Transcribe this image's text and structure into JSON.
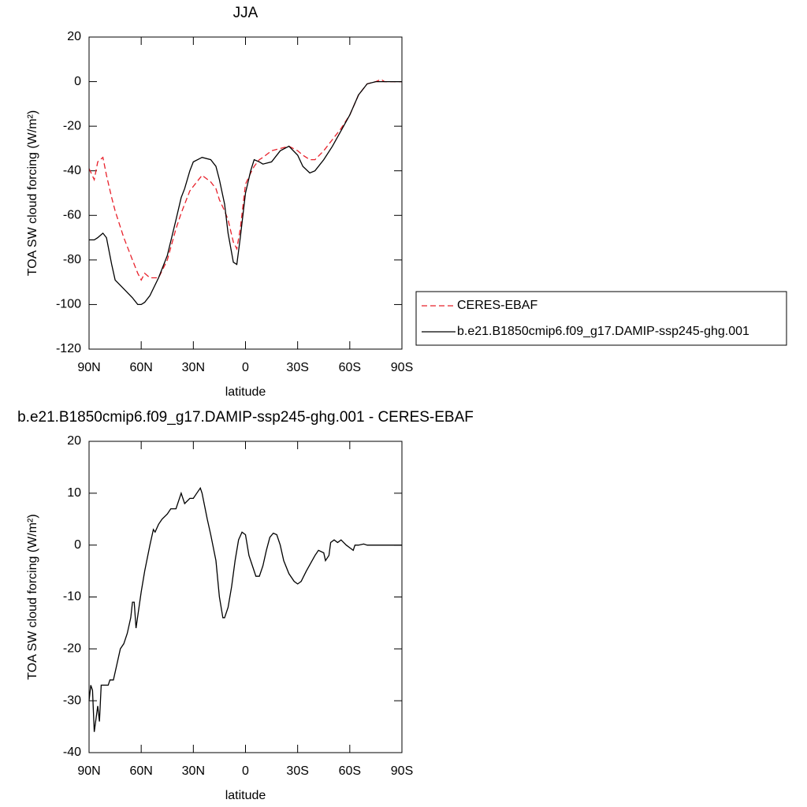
{
  "chart_data": [
    {
      "type": "line",
      "title": "JJA",
      "xlabel": "latitude",
      "ylabel": "TOA SW cloud forcing (W/m²)",
      "x": [
        90,
        87,
        85,
        82,
        80,
        77,
        75,
        70,
        65,
        62,
        60,
        58,
        55,
        50,
        45,
        40,
        37,
        35,
        32,
        30,
        25,
        20,
        17,
        15,
        12,
        10,
        7,
        5,
        3,
        0,
        -3,
        -5,
        -8,
        -10,
        -15,
        -20,
        -25,
        -30,
        -33,
        -37,
        -40,
        -45,
        -50,
        -55,
        -60,
        -65,
        -70,
        -75,
        -78,
        -80,
        -85,
        -90
      ],
      "series": [
        {
          "name": "CERES-EBAF",
          "color": "#e8202a",
          "dashed": true,
          "values": [
            -39,
            -44,
            -36,
            -34,
            -42,
            -52,
            -58,
            -70,
            -80,
            -86,
            -89,
            -86,
            -88,
            -88,
            -80,
            -66,
            -59,
            -55,
            -49,
            -47,
            -42,
            -45,
            -48,
            -53,
            -58,
            -62,
            -72,
            -75,
            -66,
            -46,
            -41,
            -38,
            -35,
            -34,
            -31,
            -30,
            -29,
            -31,
            -33,
            -35,
            -35,
            -31,
            -26,
            -21,
            -15,
            -6,
            -1,
            0,
            1,
            0,
            0,
            0
          ]
        },
        {
          "name": "b.e21.B1850cmip6.f09_g17.DAMIP-ssp245-ghg.001",
          "color": "#000000",
          "dashed": false,
          "values": [
            -71,
            -71,
            -70,
            -68,
            -70,
            -82,
            -89,
            -93,
            -97,
            -100,
            -100,
            -99,
            -96,
            -88,
            -78,
            -62,
            -52,
            -48,
            -40,
            -36,
            -34,
            -35,
            -38,
            -44,
            -55,
            -68,
            -81,
            -82,
            -70,
            -50,
            -40,
            -35,
            -36,
            -37,
            -36,
            -31,
            -29,
            -33,
            -38,
            -41,
            -40,
            -35,
            -29,
            -22,
            -15,
            -6,
            -1,
            0,
            0,
            0,
            0,
            0
          ]
        }
      ],
      "xlim": [
        90,
        -90
      ],
      "xticks": [
        {
          "value": 90,
          "label": "90N"
        },
        {
          "value": 60,
          "label": "60N"
        },
        {
          "value": 30,
          "label": "30N"
        },
        0,
        {
          "value": -30,
          "label": "30S"
        },
        {
          "value": -60,
          "label": "60S"
        },
        {
          "value": -90,
          "label": "90S"
        }
      ],
      "ylim": [
        -120,
        20
      ],
      "yticks": [
        -120,
        -100,
        -80,
        -60,
        -40,
        -20,
        0,
        20
      ],
      "legend": "right"
    },
    {
      "type": "line",
      "title": "b.e21.B1850cmip6.f09_g17.DAMIP-ssp245-ghg.001 - CERES-EBAF",
      "xlabel": "latitude",
      "ylabel": "TOA SW cloud forcing (W/m²)",
      "x": [
        90,
        89,
        88,
        87,
        85,
        84,
        83,
        81,
        79,
        78,
        76,
        74,
        72,
        70,
        68,
        66,
        65,
        64,
        63,
        60,
        58,
        55,
        53,
        52,
        50,
        48,
        45,
        43,
        40,
        37,
        35,
        32,
        30,
        28,
        26,
        25,
        22,
        20,
        17,
        15,
        13,
        12,
        10,
        8,
        6,
        4,
        2,
        0,
        -2,
        -4,
        -6,
        -8,
        -10,
        -12,
        -14,
        -16,
        -18,
        -20,
        -22,
        -25,
        -28,
        -30,
        -32,
        -35,
        -40,
        -42,
        -45,
        -46,
        -48,
        -49,
        -51,
        -53,
        -55,
        -58,
        -60,
        -62,
        -63,
        -65,
        -68,
        -70,
        -80,
        -90
      ],
      "series": [
        {
          "name": null,
          "color": "#000000",
          "dashed": false,
          "values": [
            -30,
            -27,
            -28,
            -36,
            -31,
            -34,
            -27,
            -27,
            -27,
            -26,
            -26,
            -23,
            -20,
            -19,
            -17,
            -14,
            -11,
            -11,
            -16,
            -9,
            -5,
            0,
            3,
            2.5,
            4,
            5,
            6,
            7,
            7,
            10,
            8,
            9,
            9,
            10,
            11,
            10,
            5,
            2,
            -3,
            -10,
            -14,
            -14,
            -12,
            -8,
            -3,
            1,
            2.5,
            2,
            -2,
            -4,
            -6,
            -6,
            -4,
            -1,
            1.5,
            2.3,
            2,
            0,
            -3,
            -5.5,
            -7,
            -7.5,
            -7,
            -5,
            -2,
            -1,
            -1.5,
            -3,
            -2,
            0.5,
            1,
            0.5,
            1,
            0,
            -0.5,
            -1,
            0,
            0,
            0.2,
            0,
            0,
            0
          ]
        }
      ],
      "xlim": [
        90,
        -90
      ],
      "xticks": [
        {
          "value": 90,
          "label": "90N"
        },
        {
          "value": 60,
          "label": "60N"
        },
        {
          "value": 30,
          "label": "30N"
        },
        0,
        {
          "value": -30,
          "label": "30S"
        },
        {
          "value": -60,
          "label": "60S"
        },
        {
          "value": -90,
          "label": "90S"
        }
      ],
      "ylim": [
        -40,
        20
      ],
      "yticks": [
        -40,
        -30,
        -20,
        -10,
        0,
        10,
        20
      ]
    }
  ]
}
